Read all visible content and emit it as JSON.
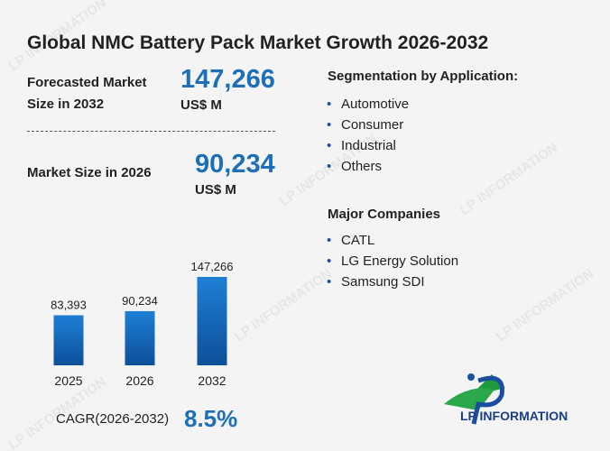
{
  "title": "Global NMC Battery Pack Market Growth 2026-2032",
  "forecast": {
    "label": "Forecasted Market Size in 2032",
    "value": "147,266",
    "unit": "US$ M"
  },
  "current": {
    "label": "Market Size in 2026",
    "value": "90,234",
    "unit": "US$ M"
  },
  "segmentation": {
    "title": "Segmentation by Application:",
    "items": [
      "Automotive",
      "Consumer",
      "Industrial",
      "Others"
    ]
  },
  "companies": {
    "title": "Major Companies",
    "items": [
      "CATL",
      "LG Energy Solution",
      "Samsung SDI"
    ]
  },
  "cagr": {
    "label": "CAGR(2026-2032)",
    "value": "8.5%"
  },
  "logo_text": "LP INFORMATION",
  "watermark": "LP INFORMATION",
  "chart_data": {
    "type": "bar",
    "categories": [
      "2025",
      "2026",
      "2032"
    ],
    "values": [
      83393,
      90234,
      147266
    ],
    "value_labels": [
      "83,393",
      "90,234",
      "147,266"
    ],
    "color": "#1e7fd6"
  }
}
